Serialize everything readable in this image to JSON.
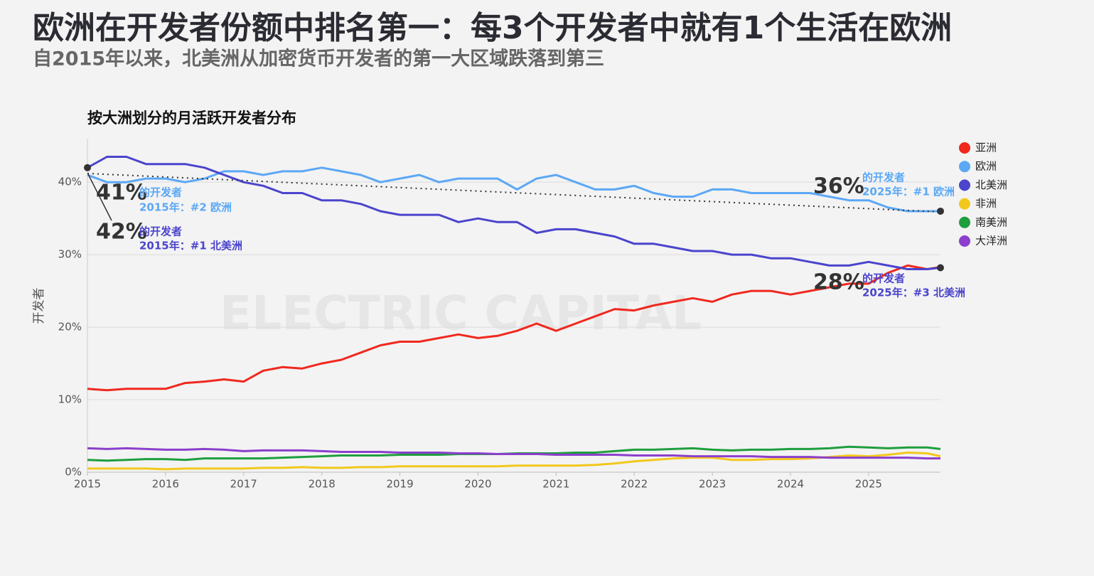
{
  "chart_data": {
    "type": "line",
    "heading": "欧洲在开发者份额中排名第一：每3个开发者中就有1个生活在欧洲",
    "subheading": "自2015年以来，北美洲从加密货币开发者的第一大区域跌落到第三",
    "title": "按大洲划分的月活跃开发者分布",
    "y_label": "开发者",
    "watermark": "ELECTRIC CAPITAL",
    "x": [
      2015,
      2015.25,
      2015.5,
      2015.75,
      2016,
      2016.25,
      2016.5,
      2016.75,
      2017,
      2017.25,
      2017.5,
      2017.75,
      2018,
      2018.25,
      2018.5,
      2018.75,
      2019,
      2019.25,
      2019.5,
      2019.75,
      2020,
      2020.25,
      2020.5,
      2020.75,
      2021,
      2021.25,
      2021.5,
      2021.75,
      2022,
      2022.25,
      2022.5,
      2022.75,
      2023,
      2023.25,
      2023.5,
      2023.75,
      2024,
      2024.25,
      2024.5,
      2024.75,
      2025,
      2025.25,
      2025.5,
      2025.75,
      2025.92
    ],
    "series": [
      {
        "name": "亚洲",
        "color": "#f0281e",
        "values": [
          11.5,
          11.3,
          11.5,
          11.5,
          11.5,
          12.3,
          12.5,
          12.8,
          12.5,
          14,
          14.5,
          14.3,
          15,
          15.5,
          16.5,
          17.5,
          18,
          18,
          18.5,
          19,
          18.5,
          18.8,
          19.5,
          20.5,
          19.5,
          20.5,
          21.5,
          22.5,
          22.3,
          23,
          23.5,
          24,
          23.5,
          24.5,
          25,
          25,
          24.5,
          25,
          25.5,
          26,
          26,
          27.5,
          28.5,
          28,
          28.3
        ]
      },
      {
        "name": "欧洲",
        "color": "#5ba8f5",
        "values": [
          41,
          40,
          40,
          40.5,
          40.5,
          40,
          40.5,
          41.5,
          41.5,
          41,
          41.5,
          41.5,
          42,
          41.5,
          41,
          40,
          40.5,
          41,
          40,
          40.5,
          40.5,
          40.5,
          39,
          40.5,
          41,
          40,
          39,
          39,
          39.5,
          38.5,
          38,
          38,
          39,
          39,
          38.5,
          38.5,
          38.5,
          38.5,
          38,
          37.5,
          37.5,
          36.5,
          36,
          36,
          36
        ]
      },
      {
        "name": "北美洲",
        "color": "#4b44cc",
        "values": [
          42,
          43.5,
          43.5,
          42.5,
          42.5,
          42.5,
          42,
          41,
          40,
          39.5,
          38.5,
          38.5,
          37.5,
          37.5,
          37,
          36,
          35.5,
          35.5,
          35.5,
          34.5,
          35,
          34.5,
          34.5,
          33,
          33.5,
          33.5,
          33,
          32.5,
          31.5,
          31.5,
          31,
          30.5,
          30.5,
          30,
          30,
          29.5,
          29.5,
          29,
          28.5,
          28.5,
          29,
          28.5,
          28,
          28,
          28.2
        ]
      },
      {
        "name": "非洲",
        "color": "#f2c81e",
        "values": [
          0.5,
          0.5,
          0.5,
          0.5,
          0.4,
          0.5,
          0.5,
          0.5,
          0.5,
          0.6,
          0.6,
          0.7,
          0.6,
          0.6,
          0.7,
          0.7,
          0.8,
          0.8,
          0.8,
          0.8,
          0.8,
          0.8,
          0.9,
          0.9,
          0.9,
          0.9,
          1.0,
          1.2,
          1.5,
          1.7,
          1.9,
          2.0,
          2.0,
          1.7,
          1.7,
          1.8,
          1.8,
          1.9,
          2.1,
          2.3,
          2.2,
          2.4,
          2.7,
          2.6,
          2.2
        ]
      },
      {
        "name": "南美洲",
        "color": "#1f9e3e",
        "values": [
          1.7,
          1.6,
          1.7,
          1.8,
          1.8,
          1.7,
          1.9,
          1.9,
          1.9,
          1.9,
          2.0,
          2.1,
          2.2,
          2.3,
          2.3,
          2.3,
          2.4,
          2.4,
          2.4,
          2.5,
          2.5,
          2.5,
          2.6,
          2.6,
          2.6,
          2.7,
          2.7,
          2.9,
          3.1,
          3.1,
          3.2,
          3.3,
          3.1,
          3.0,
          3.1,
          3.1,
          3.2,
          3.2,
          3.3,
          3.5,
          3.4,
          3.3,
          3.4,
          3.4,
          3.2
        ]
      },
      {
        "name": "大洋洲",
        "color": "#8b3fcc",
        "values": [
          3.3,
          3.2,
          3.3,
          3.2,
          3.1,
          3.1,
          3.2,
          3.1,
          2.9,
          3.0,
          3.0,
          3.0,
          2.9,
          2.8,
          2.8,
          2.8,
          2.7,
          2.7,
          2.7,
          2.6,
          2.6,
          2.5,
          2.5,
          2.5,
          2.4,
          2.4,
          2.4,
          2.4,
          2.3,
          2.3,
          2.3,
          2.2,
          2.2,
          2.2,
          2.2,
          2.1,
          2.1,
          2.1,
          2.0,
          2.0,
          2.0,
          2.0,
          2.0,
          1.9,
          1.9
        ]
      }
    ],
    "trend": {
      "x": [
        2015,
        2025.92
      ],
      "values": [
        41.2,
        35.9
      ]
    },
    "annotations": [
      {
        "value": "41%",
        "text": "的开发者",
        "note": "2015年：#2 欧洲",
        "color": "#5ba8f5"
      },
      {
        "value": "42%",
        "text": "的开发者",
        "note": "2015年：#1 北美洲",
        "color": "#4b44cc"
      },
      {
        "value": "36%",
        "text": "的开发者",
        "note": "2025年：#1 欧洲",
        "color": "#5ba8f5"
      },
      {
        "value": "28%",
        "text": "的开发者",
        "note": "2025年：#3 北美洲",
        "color": "#4b44cc"
      }
    ],
    "xlim": [
      2015,
      2025.92
    ],
    "xticks": [
      2015,
      2016,
      2017,
      2018,
      2019,
      2020,
      2021,
      2022,
      2023,
      2024,
      2025
    ],
    "ylim": [
      0,
      46
    ],
    "yticks": [
      {
        "value": 0,
        "label": "0%"
      },
      {
        "value": 10,
        "label": "10%"
      },
      {
        "value": 20,
        "label": "20%"
      },
      {
        "value": 30,
        "label": "30%"
      },
      {
        "value": 40,
        "label": "40%"
      }
    ],
    "grid": true,
    "legend": "right"
  }
}
